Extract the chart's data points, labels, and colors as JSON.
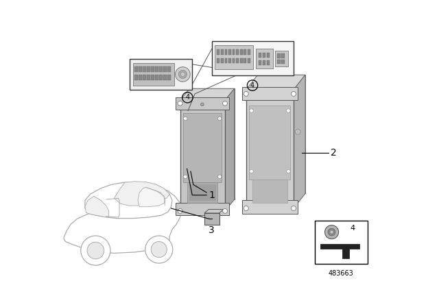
{
  "background_color": "#ffffff",
  "diagram_number": "483663",
  "car_color": "#aaaaaa",
  "unit_color_front": "#b8b8b8",
  "unit_color_back": "#c8c8c8",
  "unit_color_side": "#a0a0a0",
  "unit_color_top": "#d0d0d0",
  "flange_color": "#c0c0c0",
  "connector_bg": "#d8d8d8",
  "connector_pin_color": "#888888",
  "label_fontsize": 9,
  "circle_r": 0.022
}
